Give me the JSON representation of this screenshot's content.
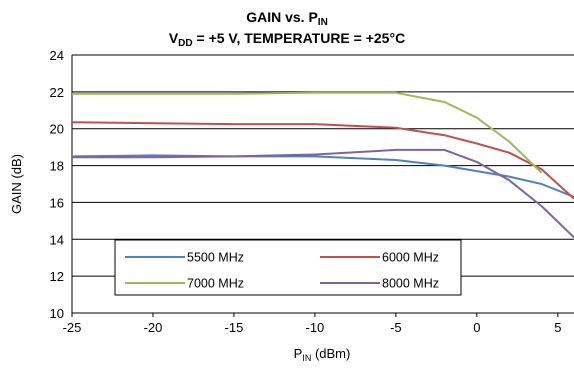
{
  "chart_data": {
    "type": "line",
    "title": {
      "line1_main": "GAIN vs. P",
      "line1_sub": "IN",
      "line2_main": "V",
      "line2_sub": "DD",
      "line2_rest": " = +5 V, TEMPERATURE = +25°C"
    },
    "xlabel": {
      "main": "P",
      "sub": "IN",
      "rest": " (dBm)"
    },
    "ylabel": "GAIN (dB)",
    "xlim": [
      -25,
      6
    ],
    "ylim": [
      10,
      24
    ],
    "xticks": [
      "-25",
      "-20",
      "-15",
      "-10",
      "-5",
      "0",
      "5"
    ],
    "yticks": [
      "10",
      "12",
      "14",
      "16",
      "18",
      "20",
      "22",
      "24"
    ],
    "grid": "horizontal",
    "legend_position": "bottom-center",
    "series": [
      {
        "name": "5500 MHz",
        "color": "#4f81bd",
        "x": [
          -25,
          -20,
          -15,
          -10,
          -5,
          -2,
          0,
          2,
          4,
          6
        ],
        "y": [
          18.5,
          18.55,
          18.5,
          18.5,
          18.3,
          18.0,
          17.7,
          17.4,
          17.0,
          16.3
        ]
      },
      {
        "name": "6000 MHz",
        "color": "#c0504d",
        "x": [
          -25,
          -20,
          -15,
          -10,
          -5,
          -2,
          0,
          2,
          4,
          6
        ],
        "y": [
          20.35,
          20.3,
          20.25,
          20.25,
          20.05,
          19.65,
          19.2,
          18.7,
          17.8,
          16.2
        ]
      },
      {
        "name": "7000 MHz",
        "color": "#9bbb59",
        "x": [
          -25,
          -20,
          -15,
          -10,
          -5,
          -2,
          0,
          2,
          4
        ],
        "y": [
          21.9,
          21.9,
          21.9,
          21.95,
          21.95,
          21.45,
          20.6,
          19.3,
          17.6
        ]
      },
      {
        "name": "8000 MHz",
        "color": "#8064a2",
        "x": [
          -25,
          -20,
          -15,
          -10,
          -5,
          -2,
          0,
          2,
          4,
          6
        ],
        "y": [
          18.45,
          18.45,
          18.5,
          18.6,
          18.85,
          18.85,
          18.2,
          17.2,
          15.8,
          14.1
        ]
      }
    ]
  }
}
